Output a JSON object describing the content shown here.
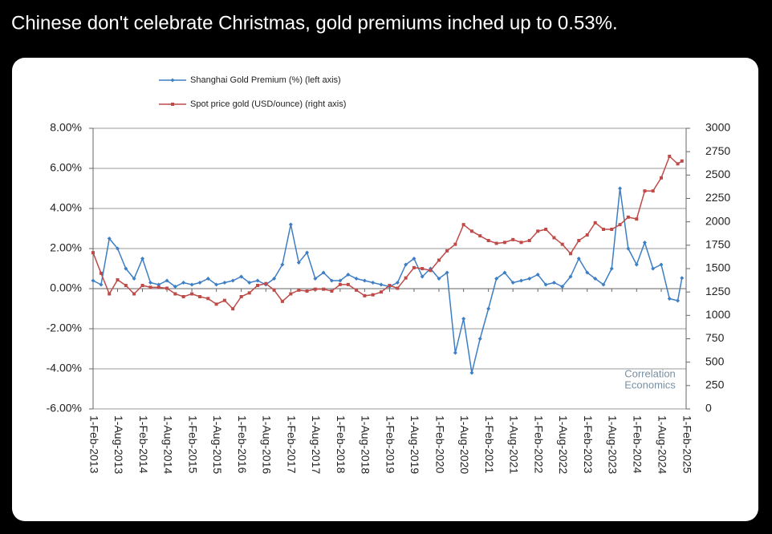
{
  "chart_data": {
    "type": "line",
    "title": "Chinese don't celebrate Christmas, gold premiums inched up to 0.53%.",
    "watermark": [
      "Correlation",
      "Economics"
    ],
    "x": [
      "2013-02-01",
      "2013-04-01",
      "2013-06-01",
      "2013-08-01",
      "2013-10-01",
      "2013-12-01",
      "2014-02-01",
      "2014-04-01",
      "2014-06-01",
      "2014-08-01",
      "2014-10-01",
      "2014-12-01",
      "2015-02-01",
      "2015-04-01",
      "2015-06-01",
      "2015-08-01",
      "2015-10-01",
      "2015-12-01",
      "2016-02-01",
      "2016-04-01",
      "2016-06-01",
      "2016-08-01",
      "2016-10-01",
      "2016-12-01",
      "2017-02-01",
      "2017-04-01",
      "2017-06-01",
      "2017-08-01",
      "2017-10-01",
      "2017-12-01",
      "2018-02-01",
      "2018-04-01",
      "2018-06-01",
      "2018-08-01",
      "2018-10-01",
      "2018-12-01",
      "2019-02-01",
      "2019-04-01",
      "2019-06-01",
      "2019-08-01",
      "2019-10-01",
      "2019-12-01",
      "2020-02-01",
      "2020-04-01",
      "2020-06-01",
      "2020-08-01",
      "2020-10-01",
      "2020-12-01",
      "2021-02-01",
      "2021-04-01",
      "2021-06-01",
      "2021-08-01",
      "2021-10-01",
      "2021-12-01",
      "2022-02-01",
      "2022-04-01",
      "2022-06-01",
      "2022-08-01",
      "2022-10-01",
      "2022-12-01",
      "2023-02-01",
      "2023-04-01",
      "2023-06-01",
      "2023-08-01",
      "2023-10-01",
      "2023-12-01",
      "2024-02-01",
      "2024-04-01",
      "2024-06-01",
      "2024-08-01",
      "2024-10-01",
      "2024-12-01",
      "2025-01-01"
    ],
    "series": [
      {
        "name": "Shanghai Gold Premium (%) (left axis)",
        "color": "#3d7ec4",
        "axis": "y",
        "marker": "diamond",
        "values": [
          0.4,
          0.2,
          2.5,
          2.0,
          1.0,
          0.5,
          1.5,
          0.3,
          0.2,
          0.4,
          0.1,
          0.3,
          0.2,
          0.3,
          0.5,
          0.2,
          0.3,
          0.4,
          0.6,
          0.3,
          0.4,
          0.2,
          0.5,
          1.2,
          3.2,
          1.3,
          1.8,
          0.5,
          0.8,
          0.4,
          0.4,
          0.7,
          0.5,
          0.4,
          0.3,
          0.2,
          0.1,
          0.3,
          1.2,
          1.5,
          0.6,
          1.0,
          0.5,
          0.8,
          -3.2,
          -1.5,
          -4.2,
          -2.5,
          -1.0,
          0.5,
          0.8,
          0.3,
          0.4,
          0.5,
          0.7,
          0.2,
          0.3,
          0.1,
          0.6,
          1.5,
          0.8,
          0.5,
          0.2,
          1.0,
          5.0,
          2.0,
          1.2,
          2.3,
          1.0,
          1.2,
          -0.5,
          -0.6,
          0.53
        ]
      },
      {
        "name": "Spot price gold (USD/ounce) (right axis)",
        "color": "#be4b48",
        "axis": "y2",
        "marker": "square",
        "values": [
          1670,
          1450,
          1230,
          1380,
          1320,
          1230,
          1320,
          1300,
          1300,
          1290,
          1230,
          1200,
          1230,
          1200,
          1180,
          1120,
          1160,
          1070,
          1200,
          1240,
          1320,
          1340,
          1270,
          1150,
          1230,
          1270,
          1260,
          1280,
          1280,
          1260,
          1330,
          1330,
          1270,
          1210,
          1220,
          1250,
          1320,
          1290,
          1400,
          1510,
          1500,
          1480,
          1590,
          1690,
          1760,
          1970,
          1900,
          1850,
          1800,
          1770,
          1780,
          1810,
          1780,
          1800,
          1900,
          1920,
          1830,
          1760,
          1660,
          1800,
          1860,
          1990,
          1920,
          1920,
          1970,
          2050,
          2030,
          2330,
          2330,
          2470,
          2700,
          2620,
          2650
        ]
      }
    ],
    "xlim": [
      "2013-02-01",
      "2025-02-01"
    ],
    "xticks": [
      {
        "value": "2013-02-01",
        "label": "1-Feb-2013"
      },
      {
        "value": "2013-08-01",
        "label": "1-Aug-2013"
      },
      {
        "value": "2014-02-01",
        "label": "1-Feb-2014"
      },
      {
        "value": "2014-08-01",
        "label": "1-Aug-2014"
      },
      {
        "value": "2015-02-01",
        "label": "1-Feb-2015"
      },
      {
        "value": "2015-08-01",
        "label": "1-Aug-2015"
      },
      {
        "value": "2016-02-01",
        "label": "1-Feb-2016"
      },
      {
        "value": "2016-08-01",
        "label": "1-Aug-2016"
      },
      {
        "value": "2017-02-01",
        "label": "1-Feb-2017"
      },
      {
        "value": "2017-08-01",
        "label": "1-Aug-2017"
      },
      {
        "value": "2018-02-01",
        "label": "1-Feb-2018"
      },
      {
        "value": "2018-08-01",
        "label": "1-Aug-2018"
      },
      {
        "value": "2019-02-01",
        "label": "1-Feb-2019"
      },
      {
        "value": "2019-08-01",
        "label": "1-Aug-2019"
      },
      {
        "value": "2020-02-01",
        "label": "1-Feb-2020"
      },
      {
        "value": "2020-08-01",
        "label": "1-Aug-2020"
      },
      {
        "value": "2021-02-01",
        "label": "1-Feb-2021"
      },
      {
        "value": "2021-08-01",
        "label": "1-Aug-2021"
      },
      {
        "value": "2022-02-01",
        "label": "1-Feb-2022"
      },
      {
        "value": "2022-08-01",
        "label": "1-Aug-2022"
      },
      {
        "value": "2023-02-01",
        "label": "1-Feb-2023"
      },
      {
        "value": "2023-08-01",
        "label": "1-Aug-2023"
      },
      {
        "value": "2024-02-01",
        "label": "1-Feb-2024"
      },
      {
        "value": "2024-08-01",
        "label": "1-Aug-2024"
      },
      {
        "value": "2025-02-01",
        "label": "1-Feb-2025"
      }
    ],
    "ylim": [
      -6,
      8
    ],
    "yticks": [
      {
        "value": -6,
        "label": "-6.00%"
      },
      {
        "value": -4,
        "label": "-4.00%"
      },
      {
        "value": -2,
        "label": "-2.00%"
      },
      {
        "value": 0,
        "label": "0.00%"
      },
      {
        "value": 2,
        "label": "2.00%"
      },
      {
        "value": 4,
        "label": "4.00%"
      },
      {
        "value": 6,
        "label": "6.00%"
      },
      {
        "value": 8,
        "label": "8.00%"
      }
    ],
    "y2lim": [
      0,
      3000
    ],
    "y2ticks": [
      0,
      250,
      500,
      750,
      1000,
      1250,
      1500,
      1750,
      2000,
      2250,
      2500,
      2750,
      3000
    ],
    "grid": true,
    "legend": "top"
  }
}
